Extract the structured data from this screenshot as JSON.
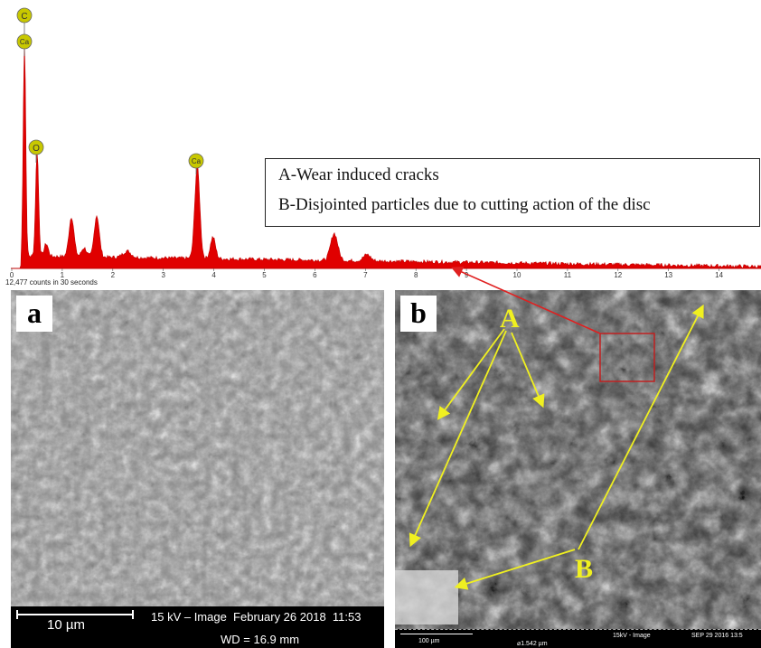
{
  "spectrum": {
    "element_labels": [
      "C",
      "Ca",
      "O",
      "Ca"
    ],
    "x_ticks": [
      "0",
      "1",
      "2",
      "3",
      "4",
      "5",
      "6",
      "7",
      "8",
      "9",
      "10",
      "11",
      "12",
      "13",
      "14"
    ],
    "counts_note": "12,477 counts in 30 seconds",
    "peak_color": "#e00000",
    "label_color": "#c8c800"
  },
  "legend": {
    "line_a": "A-Wear induced cracks",
    "line_b": "B-Disjointed particles due to cutting action of the disc"
  },
  "panel_a": {
    "tag": "a",
    "scale": "10 µm",
    "info": "15 kV – Image  February 26 2018  11:53",
    "wd": "WD = 16.9 mm"
  },
  "panel_b": {
    "tag": "b",
    "label_a": "A",
    "label_b": "B",
    "scale": "100 µm",
    "info_mid": "15kV - Image",
    "info_right": "SEP 29 2016 13:5",
    "fov": "⌀1.542 µm",
    "annotation_color": "#f0f020"
  }
}
